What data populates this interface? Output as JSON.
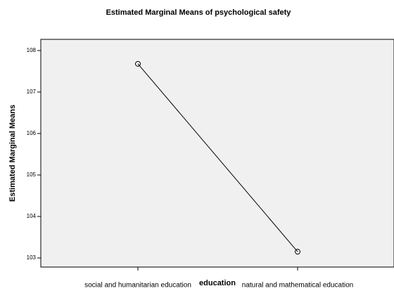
{
  "chart_data": {
    "type": "line",
    "title": "Estimated Marginal Means of psychological safety",
    "x_label": "education",
    "y_label": "Estimated Marginal Means",
    "categories": [
      "social and humanitarian education",
      "natural and mathematical education"
    ],
    "series": [
      {
        "name": "psychological safety",
        "color": "#000000",
        "values": [
          107.68,
          103.15
        ]
      }
    ],
    "ylim": [
      102.78,
      108.27
    ],
    "yticks": [
      103,
      104,
      105,
      106,
      107,
      108
    ],
    "plot_background": "#f0f0f0"
  }
}
